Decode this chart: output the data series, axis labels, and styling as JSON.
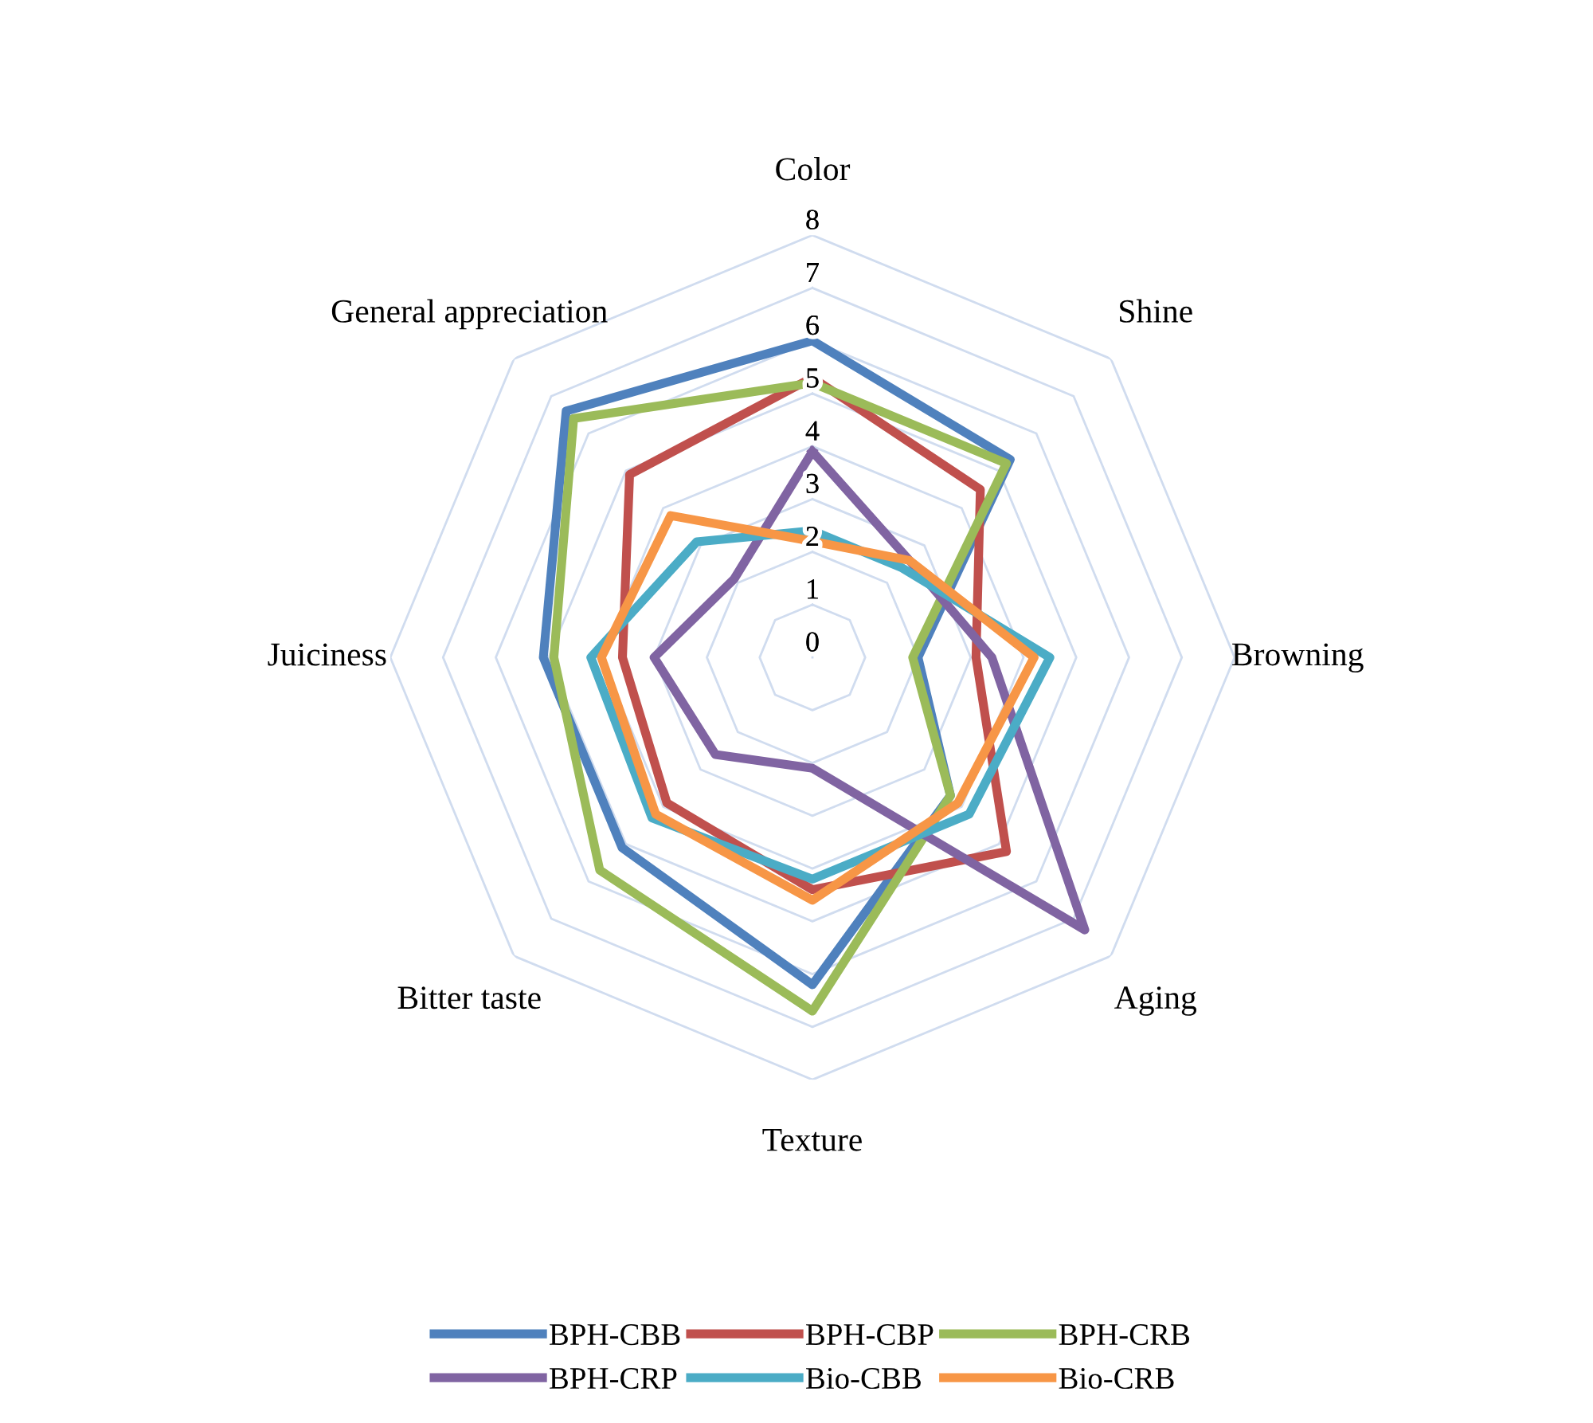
{
  "chart_data": {
    "type": "radar",
    "categories": [
      "Color",
      "Shine",
      "Browning",
      "Aging",
      "Texture",
      "Bitter taste",
      "Juiciness",
      "General appreciation"
    ],
    "ylim": [
      0,
      8
    ],
    "yticks": [
      0,
      1,
      2,
      3,
      4,
      5,
      6,
      7,
      8
    ],
    "grid": true,
    "legend": "bottom",
    "marker": "none",
    "line_style": "solid",
    "series": [
      {
        "name": "BPH-CBB",
        "color": "#4f81bd",
        "values": [
          6,
          5.3,
          2,
          3.7,
          6.2,
          5.1,
          5.1,
          6.6
        ]
      },
      {
        "name": "BPH-CBP",
        "color": "#c0504d",
        "values": [
          5.3,
          4.5,
          3.1,
          5.2,
          4.4,
          3.9,
          3.6,
          4.9
        ]
      },
      {
        "name": "BPH-CRB",
        "color": "#9bbb59",
        "values": [
          5.2,
          5.2,
          1.9,
          3.7,
          6.7,
          5.7,
          4.9,
          6.4
        ]
      },
      {
        "name": "BPH-CRP",
        "color": "#8064a2",
        "values": [
          3.9,
          2.6,
          3.4,
          7.3,
          2.1,
          2.6,
          3,
          2.1
        ]
      },
      {
        "name": "Bio-CBB",
        "color": "#4bacc6",
        "values": [
          2.4,
          2.4,
          4.5,
          4.2,
          4.2,
          4.3,
          4.2,
          3.1
        ]
      },
      {
        "name": "Bio-CRB",
        "color": "#f79646",
        "values": [
          2.2,
          2.6,
          4.2,
          3.9,
          4.6,
          4.2,
          4,
          3.8
        ]
      }
    ]
  }
}
